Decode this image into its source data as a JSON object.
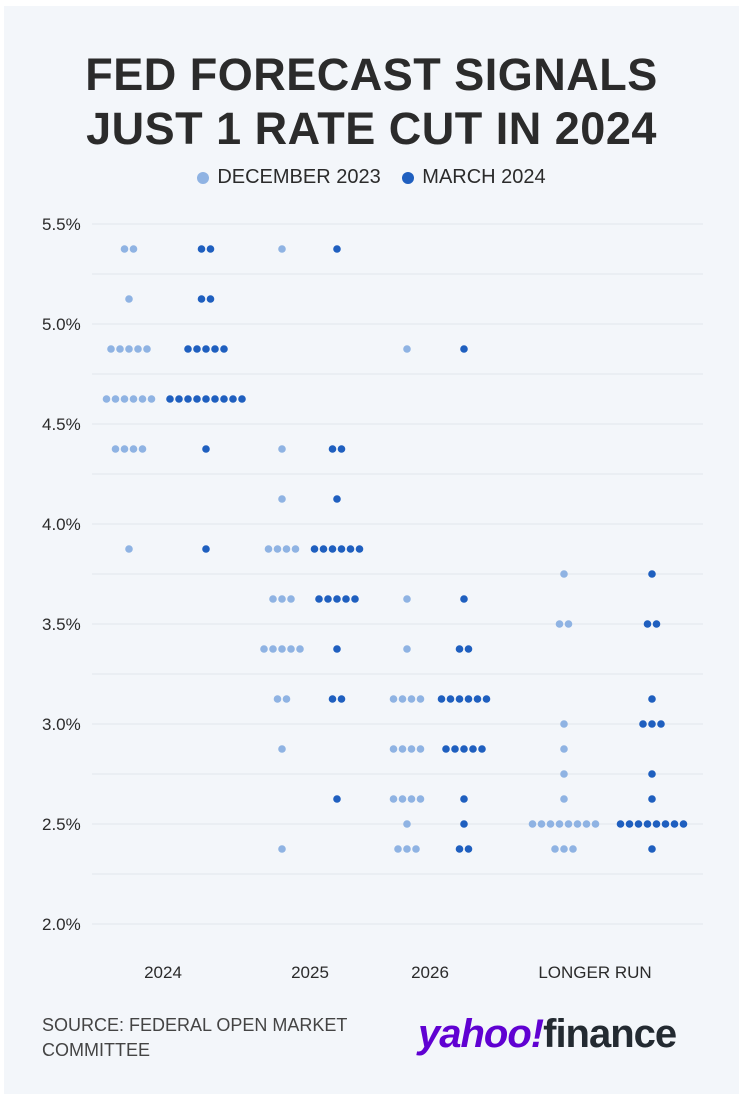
{
  "chart_data": {
    "type": "scatter",
    "subtype": "dot-plot",
    "title": "FED FORECAST SIGNALS JUST 1 RATE CUT IN 2024",
    "title_lines": [
      "FED FORECAST SIGNALS",
      "JUST 1 RATE CUT IN 2024"
    ],
    "xlabel": "",
    "ylabel": "",
    "ylim": [
      2.0,
      5.5
    ],
    "yticks": [
      5.5,
      5.0,
      4.5,
      4.0,
      3.5,
      3.0,
      2.5,
      2.0
    ],
    "ytick_labels": [
      "5.5%",
      "5.0%",
      "4.5%",
      "4.0%",
      "3.5%",
      "3.0%",
      "2.5%",
      "2.0%"
    ],
    "grid_step": 0.25,
    "grid": true,
    "legend_position": "top-center",
    "categories": [
      "2024",
      "2025",
      "2026",
      "LONGER RUN"
    ],
    "series": [
      {
        "name": "DECEMBER 2023",
        "color": "#8fb3e3",
        "values": [
          [
            [
              5.375,
              2
            ],
            [
              5.125,
              1
            ],
            [
              4.875,
              5
            ],
            [
              4.625,
              6
            ],
            [
              4.375,
              4
            ],
            [
              3.875,
              1
            ]
          ],
          [
            [
              5.375,
              1
            ],
            [
              4.375,
              1
            ],
            [
              4.125,
              1
            ],
            [
              3.875,
              4
            ],
            [
              3.625,
              3
            ],
            [
              3.375,
              5
            ],
            [
              3.125,
              2
            ],
            [
              2.875,
              1
            ],
            [
              2.375,
              1
            ]
          ],
          [
            [
              4.875,
              1
            ],
            [
              3.625,
              1
            ],
            [
              3.375,
              1
            ],
            [
              3.125,
              4
            ],
            [
              2.875,
              4
            ],
            [
              2.625,
              4
            ],
            [
              2.5,
              1
            ],
            [
              2.375,
              3
            ]
          ],
          [
            [
              3.75,
              1
            ],
            [
              3.5,
              2
            ],
            [
              3.0,
              1
            ],
            [
              2.875,
              1
            ],
            [
              2.75,
              1
            ],
            [
              2.625,
              1
            ],
            [
              2.5,
              8
            ],
            [
              2.375,
              3
            ]
          ]
        ]
      },
      {
        "name": "MARCH 2024",
        "color": "#1f5fbf",
        "values": [
          [
            [
              5.375,
              2
            ],
            [
              5.125,
              2
            ],
            [
              4.875,
              5
            ],
            [
              4.625,
              9
            ],
            [
              4.375,
              1
            ],
            [
              3.875,
              1
            ]
          ],
          [
            [
              5.375,
              1
            ],
            [
              4.375,
              2
            ],
            [
              4.125,
              1
            ],
            [
              3.875,
              6
            ],
            [
              3.625,
              5
            ],
            [
              3.375,
              1
            ],
            [
              3.125,
              2
            ],
            [
              2.625,
              1
            ]
          ],
          [
            [
              4.875,
              1
            ],
            [
              3.625,
              1
            ],
            [
              3.375,
              2
            ],
            [
              3.125,
              6
            ],
            [
              2.875,
              5
            ],
            [
              2.625,
              1
            ],
            [
              2.5,
              1
            ],
            [
              2.375,
              2
            ]
          ],
          [
            [
              3.75,
              1
            ],
            [
              3.5,
              2
            ],
            [
              3.125,
              1
            ],
            [
              3.0,
              3
            ],
            [
              2.75,
              1
            ],
            [
              2.625,
              1
            ],
            [
              2.5,
              8
            ],
            [
              2.375,
              1
            ]
          ]
        ]
      }
    ]
  },
  "footer": {
    "source_line1": "SOURCE: FEDERAL OPEN MARKET",
    "source_line2": "COMMITTEE",
    "logo_yahoo": "yahoo!",
    "logo_finance": "finance"
  }
}
